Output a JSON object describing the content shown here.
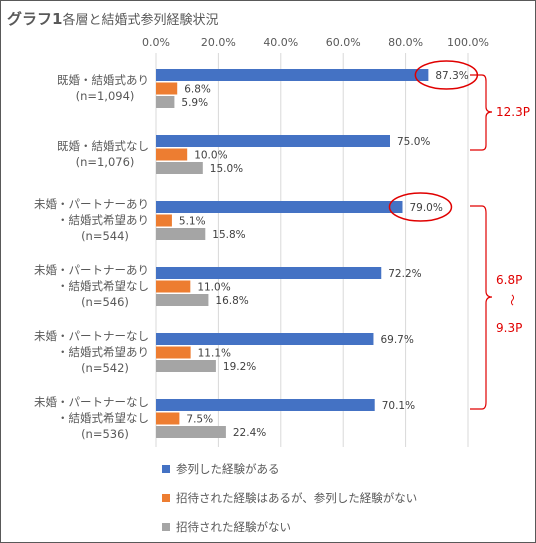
{
  "chart_data": {
    "type": "bar",
    "orientation": "horizontal",
    "title_strong": "グラフ1",
    "title_rest": "各層と結婚式参列経験状況",
    "xlim": [
      0,
      100
    ],
    "x_ticks": [
      "0.0%",
      "20.0%",
      "40.0%",
      "60.0%",
      "80.0%",
      "100.0%"
    ],
    "grid": true,
    "legend_position": "bottom-left",
    "categories": [
      {
        "lines": [
          "既婚・結婚式あり",
          "(n=1,094)"
        ]
      },
      {
        "lines": [
          "既婚・結婚式なし",
          "(n=1,076)"
        ]
      },
      {
        "lines": [
          "未婚・パートナーあり",
          "・結婚式希望あり",
          "(n=544)"
        ]
      },
      {
        "lines": [
          "未婚・パートナーあり",
          "・結婚式希望なし",
          "(n=546)"
        ]
      },
      {
        "lines": [
          "未婚・パートナーなし",
          "・結婚式希望あり",
          "(n=542)"
        ]
      },
      {
        "lines": [
          "未婚・パートナーなし",
          "・結婚式希望なし",
          "(n=536)"
        ]
      }
    ],
    "series": [
      {
        "name": "参列した経験がある",
        "color": "#4472C4",
        "values": [
          87.3,
          75.0,
          79.0,
          72.2,
          69.7,
          70.1
        ],
        "labels": [
          "87.3%",
          "75.0%",
          "79.0%",
          "72.2%",
          "69.7%",
          "70.1%"
        ]
      },
      {
        "name": "招待された経験はあるが、参列した経験がない",
        "color": "#ED7D31",
        "values": [
          6.8,
          10.0,
          5.1,
          11.0,
          11.1,
          7.5
        ],
        "labels": [
          "6.8%",
          "10.0%",
          "5.1%",
          "11.0%",
          "11.1%",
          "7.5%"
        ]
      },
      {
        "name": "招待された経験がない",
        "color": "#A5A5A5",
        "values": [
          5.9,
          15.0,
          15.8,
          16.8,
          19.2,
          22.4
        ],
        "labels": [
          "5.9%",
          "15.0%",
          "15.8%",
          "16.8%",
          "19.2%",
          "22.4%"
        ]
      }
    ],
    "annotations": {
      "color": "#E00000",
      "circled_values": [
        87.3,
        79.0
      ],
      "brace_top_label": "12.3P",
      "brace_bottom_label_1": "6.8P",
      "brace_bottom_tilde": "〜",
      "brace_bottom_label_2": "9.3P"
    }
  }
}
